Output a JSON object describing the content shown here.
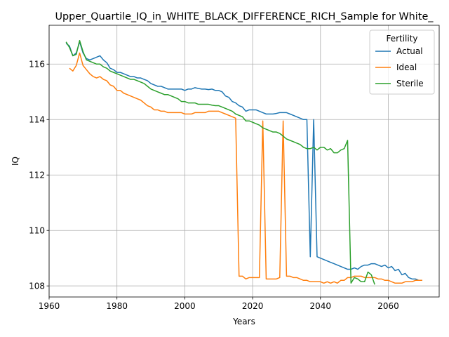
{
  "chart_data": {
    "type": "line",
    "title": "Upper_Quartile_IQ_in_WHITE_BLACK_DIFFERENCE_RICH_Sample for White_",
    "xlabel": "Years",
    "ylabel": "IQ",
    "xlim": [
      1960,
      2075
    ],
    "ylim": [
      107.6,
      117.4
    ],
    "xticks": [
      1960,
      1980,
      2000,
      2020,
      2040,
      2060
    ],
    "yticks": [
      108,
      110,
      112,
      114,
      116
    ],
    "grid": true,
    "legend": {
      "title": "Fertility",
      "placement": "top-right"
    },
    "series": [
      {
        "name": "Actual",
        "color": "#1f77b4",
        "points": [
          [
            1965,
            116.75
          ],
          [
            1966,
            116.65
          ],
          [
            1967,
            116.3
          ],
          [
            1968,
            116.4
          ],
          [
            1969,
            116.8
          ],
          [
            1970,
            116.4
          ],
          [
            1971,
            116.2
          ],
          [
            1972,
            116.15
          ],
          [
            1973,
            116.2
          ],
          [
            1974,
            116.25
          ],
          [
            1975,
            116.3
          ],
          [
            1976,
            116.15
          ],
          [
            1977,
            116.05
          ],
          [
            1978,
            115.85
          ],
          [
            1979,
            115.8
          ],
          [
            1980,
            115.7
          ],
          [
            1981,
            115.7
          ],
          [
            1982,
            115.65
          ],
          [
            1983,
            115.6
          ],
          [
            1984,
            115.55
          ],
          [
            1985,
            115.55
          ],
          [
            1986,
            115.5
          ],
          [
            1987,
            115.5
          ],
          [
            1988,
            115.45
          ],
          [
            1989,
            115.4
          ],
          [
            1990,
            115.3
          ],
          [
            1991,
            115.25
          ],
          [
            1992,
            115.2
          ],
          [
            1993,
            115.2
          ],
          [
            1994,
            115.15
          ],
          [
            1995,
            115.1
          ],
          [
            1996,
            115.1
          ],
          [
            1997,
            115.1
          ],
          [
            1998,
            115.1
          ],
          [
            1999,
            115.1
          ],
          [
            2000,
            115.05
          ],
          [
            2001,
            115.1
          ],
          [
            2002,
            115.1
          ],
          [
            2003,
            115.15
          ],
          [
            2004,
            115.12
          ],
          [
            2005,
            115.1
          ],
          [
            2006,
            115.1
          ],
          [
            2007,
            115.08
          ],
          [
            2008,
            115.1
          ],
          [
            2009,
            115.05
          ],
          [
            2010,
            115.05
          ],
          [
            2011,
            115.0
          ],
          [
            2012,
            114.85
          ],
          [
            2013,
            114.8
          ],
          [
            2014,
            114.65
          ],
          [
            2015,
            114.6
          ],
          [
            2016,
            114.5
          ],
          [
            2017,
            114.45
          ],
          [
            2018,
            114.3
          ],
          [
            2019,
            114.35
          ],
          [
            2020,
            114.35
          ],
          [
            2021,
            114.35
          ],
          [
            2022,
            114.3
          ],
          [
            2023,
            114.25
          ],
          [
            2024,
            114.2
          ],
          [
            2025,
            114.2
          ],
          [
            2026,
            114.2
          ],
          [
            2027,
            114.22
          ],
          [
            2028,
            114.25
          ],
          [
            2029,
            114.25
          ],
          [
            2030,
            114.25
          ],
          [
            2031,
            114.2
          ],
          [
            2032,
            114.15
          ],
          [
            2033,
            114.1
          ],
          [
            2034,
            114.05
          ],
          [
            2035,
            114.0
          ],
          [
            2036,
            114.0
          ],
          [
            2037,
            109.05
          ],
          [
            2038,
            114.0
          ],
          [
            2039,
            109.05
          ],
          [
            2040,
            109.0
          ],
          [
            2041,
            108.95
          ],
          [
            2042,
            108.9
          ],
          [
            2043,
            108.85
          ],
          [
            2044,
            108.8
          ],
          [
            2045,
            108.75
          ],
          [
            2046,
            108.7
          ],
          [
            2047,
            108.65
          ],
          [
            2048,
            108.6
          ],
          [
            2049,
            108.6
          ],
          [
            2050,
            108.65
          ],
          [
            2051,
            108.6
          ],
          [
            2052,
            108.7
          ],
          [
            2053,
            108.75
          ],
          [
            2054,
            108.75
          ],
          [
            2055,
            108.8
          ],
          [
            2056,
            108.8
          ],
          [
            2057,
            108.75
          ],
          [
            2058,
            108.7
          ],
          [
            2059,
            108.75
          ],
          [
            2060,
            108.65
          ],
          [
            2061,
            108.7
          ],
          [
            2062,
            108.55
          ],
          [
            2063,
            108.6
          ],
          [
            2064,
            108.4
          ],
          [
            2065,
            108.45
          ],
          [
            2066,
            108.3
          ],
          [
            2067,
            108.25
          ],
          [
            2068,
            108.25
          ],
          [
            2069,
            108.2
          ],
          [
            2070,
            108.2
          ]
        ]
      },
      {
        "name": "Ideal",
        "color": "#ff7f0e",
        "points": [
          [
            1966,
            115.85
          ],
          [
            1967,
            115.75
          ],
          [
            1968,
            115.95
          ],
          [
            1969,
            116.4
          ],
          [
            1970,
            115.95
          ],
          [
            1971,
            115.8
          ],
          [
            1972,
            115.65
          ],
          [
            1973,
            115.55
          ],
          [
            1974,
            115.5
          ],
          [
            1975,
            115.55
          ],
          [
            1976,
            115.45
          ],
          [
            1977,
            115.4
          ],
          [
            1978,
            115.25
          ],
          [
            1979,
            115.2
          ],
          [
            1980,
            115.05
          ],
          [
            1981,
            115.05
          ],
          [
            1982,
            114.95
          ],
          [
            1983,
            114.9
          ],
          [
            1984,
            114.85
          ],
          [
            1985,
            114.8
          ],
          [
            1986,
            114.75
          ],
          [
            1987,
            114.7
          ],
          [
            1988,
            114.6
          ],
          [
            1989,
            114.5
          ],
          [
            1990,
            114.45
          ],
          [
            1991,
            114.35
          ],
          [
            1992,
            114.35
          ],
          [
            1993,
            114.3
          ],
          [
            1994,
            114.3
          ],
          [
            1995,
            114.25
          ],
          [
            1996,
            114.25
          ],
          [
            1997,
            114.25
          ],
          [
            1998,
            114.25
          ],
          [
            1999,
            114.25
          ],
          [
            2000,
            114.2
          ],
          [
            2001,
            114.2
          ],
          [
            2002,
            114.2
          ],
          [
            2003,
            114.25
          ],
          [
            2004,
            114.25
          ],
          [
            2005,
            114.25
          ],
          [
            2006,
            114.25
          ],
          [
            2007,
            114.3
          ],
          [
            2008,
            114.3
          ],
          [
            2009,
            114.3
          ],
          [
            2010,
            114.3
          ],
          [
            2011,
            114.25
          ],
          [
            2012,
            114.2
          ],
          [
            2013,
            114.15
          ],
          [
            2014,
            114.1
          ],
          [
            2015,
            114.05
          ],
          [
            2016,
            108.35
          ],
          [
            2017,
            108.35
          ],
          [
            2018,
            108.25
          ],
          [
            2019,
            108.3
          ],
          [
            2020,
            108.3
          ],
          [
            2021,
            108.3
          ],
          [
            2022,
            108.3
          ],
          [
            2023,
            113.95
          ],
          [
            2024,
            108.25
          ],
          [
            2025,
            108.25
          ],
          [
            2026,
            108.25
          ],
          [
            2027,
            108.25
          ],
          [
            2028,
            108.3
          ],
          [
            2029,
            113.95
          ],
          [
            2030,
            108.35
          ],
          [
            2031,
            108.35
          ],
          [
            2032,
            108.3
          ],
          [
            2033,
            108.3
          ],
          [
            2034,
            108.25
          ],
          [
            2035,
            108.2
          ],
          [
            2036,
            108.2
          ],
          [
            2037,
            108.15
          ],
          [
            2038,
            108.15
          ],
          [
            2039,
            108.15
          ],
          [
            2040,
            108.15
          ],
          [
            2041,
            108.1
          ],
          [
            2042,
            108.15
          ],
          [
            2043,
            108.1
          ],
          [
            2044,
            108.15
          ],
          [
            2045,
            108.1
          ],
          [
            2046,
            108.2
          ],
          [
            2047,
            108.2
          ],
          [
            2048,
            108.3
          ],
          [
            2049,
            108.3
          ],
          [
            2050,
            108.35
          ],
          [
            2051,
            108.35
          ],
          [
            2052,
            108.35
          ],
          [
            2053,
            108.3
          ],
          [
            2054,
            108.3
          ],
          [
            2055,
            108.3
          ],
          [
            2056,
            108.3
          ],
          [
            2057,
            108.25
          ],
          [
            2058,
            108.25
          ],
          [
            2059,
            108.2
          ],
          [
            2060,
            108.2
          ],
          [
            2061,
            108.15
          ],
          [
            2062,
            108.1
          ],
          [
            2063,
            108.1
          ],
          [
            2064,
            108.1
          ],
          [
            2065,
            108.15
          ],
          [
            2066,
            108.15
          ],
          [
            2067,
            108.15
          ],
          [
            2068,
            108.2
          ],
          [
            2069,
            108.2
          ],
          [
            2070,
            108.2
          ]
        ]
      },
      {
        "name": "Sterile",
        "color": "#2ca02c",
        "points": [
          [
            1965,
            116.8
          ],
          [
            1966,
            116.6
          ],
          [
            1967,
            116.3
          ],
          [
            1968,
            116.35
          ],
          [
            1969,
            116.85
          ],
          [
            1970,
            116.45
          ],
          [
            1971,
            116.15
          ],
          [
            1972,
            116.1
          ],
          [
            1973,
            116.05
          ],
          [
            1974,
            116.0
          ],
          [
            1975,
            116.0
          ],
          [
            1976,
            115.9
          ],
          [
            1977,
            115.85
          ],
          [
            1978,
            115.75
          ],
          [
            1979,
            115.7
          ],
          [
            1980,
            115.65
          ],
          [
            1981,
            115.6
          ],
          [
            1982,
            115.55
          ],
          [
            1983,
            115.5
          ],
          [
            1984,
            115.45
          ],
          [
            1985,
            115.45
          ],
          [
            1986,
            115.4
          ],
          [
            1987,
            115.35
          ],
          [
            1988,
            115.3
          ],
          [
            1989,
            115.2
          ],
          [
            1990,
            115.1
          ],
          [
            1991,
            115.05
          ],
          [
            1992,
            115.0
          ],
          [
            1993,
            114.95
          ],
          [
            1994,
            114.9
          ],
          [
            1995,
            114.9
          ],
          [
            1996,
            114.85
          ],
          [
            1997,
            114.8
          ],
          [
            1998,
            114.75
          ],
          [
            1999,
            114.65
          ],
          [
            2000,
            114.65
          ],
          [
            2001,
            114.6
          ],
          [
            2002,
            114.6
          ],
          [
            2003,
            114.6
          ],
          [
            2004,
            114.55
          ],
          [
            2005,
            114.55
          ],
          [
            2006,
            114.55
          ],
          [
            2007,
            114.55
          ],
          [
            2008,
            114.52
          ],
          [
            2009,
            114.5
          ],
          [
            2010,
            114.5
          ],
          [
            2011,
            114.45
          ],
          [
            2012,
            114.4
          ],
          [
            2013,
            114.35
          ],
          [
            2014,
            114.3
          ],
          [
            2015,
            114.2
          ],
          [
            2016,
            114.15
          ],
          [
            2017,
            114.1
          ],
          [
            2018,
            113.95
          ],
          [
            2019,
            113.95
          ],
          [
            2020,
            113.9
          ],
          [
            2021,
            113.85
          ],
          [
            2022,
            113.8
          ],
          [
            2023,
            113.7
          ],
          [
            2024,
            113.65
          ],
          [
            2025,
            113.6
          ],
          [
            2026,
            113.55
          ],
          [
            2027,
            113.55
          ],
          [
            2028,
            113.5
          ],
          [
            2029,
            113.4
          ],
          [
            2030,
            113.3
          ],
          [
            2031,
            113.25
          ],
          [
            2032,
            113.2
          ],
          [
            2033,
            113.15
          ],
          [
            2034,
            113.1
          ],
          [
            2035,
            113.0
          ],
          [
            2036,
            112.95
          ],
          [
            2037,
            112.95
          ],
          [
            2038,
            113.0
          ],
          [
            2039,
            112.9
          ],
          [
            2040,
            113.0
          ],
          [
            2041,
            113.0
          ],
          [
            2042,
            112.9
          ],
          [
            2043,
            112.95
          ],
          [
            2044,
            112.8
          ],
          [
            2045,
            112.8
          ],
          [
            2046,
            112.9
          ],
          [
            2047,
            112.95
          ],
          [
            2048,
            113.25
          ],
          [
            2049,
            108.1
          ],
          [
            2050,
            108.3
          ],
          [
            2051,
            108.25
          ],
          [
            2052,
            108.15
          ],
          [
            2053,
            108.15
          ],
          [
            2054,
            108.5
          ],
          [
            2055,
            108.4
          ],
          [
            2056,
            108.05
          ]
        ]
      }
    ]
  }
}
